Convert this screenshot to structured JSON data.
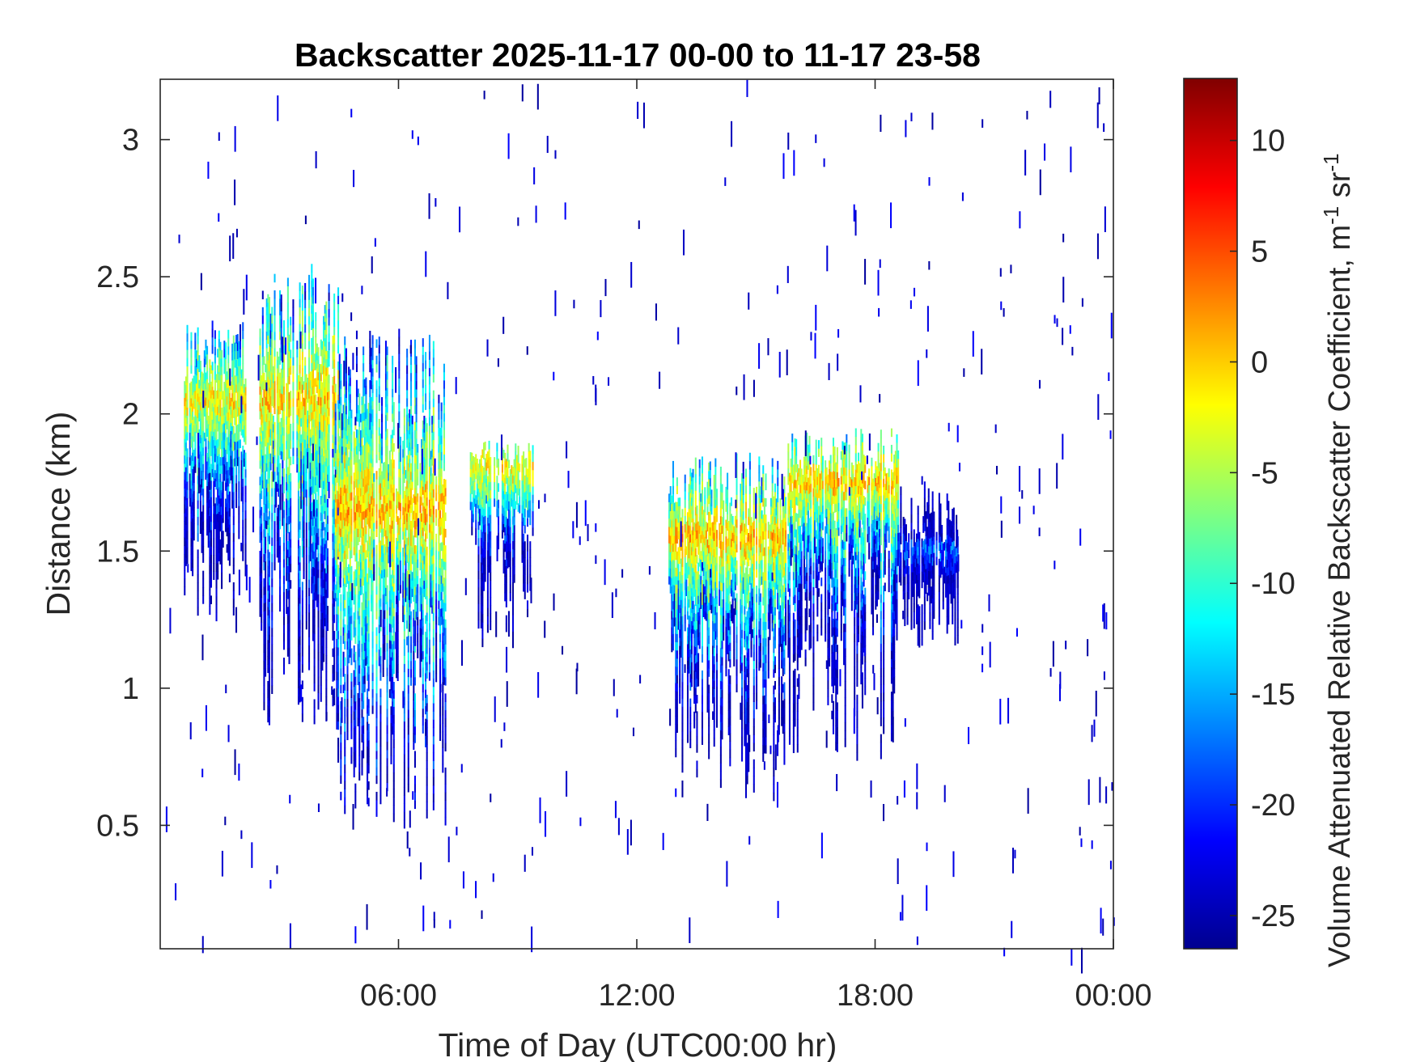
{
  "chart_data": {
    "type": "heatmap",
    "title": "Backscatter 2025-11-17 00-00 to 11-17 23-58",
    "xlabel": "Time of Day (UTC00:00 hr)",
    "ylabel": "Distance (km)",
    "xlim": [
      0,
      24
    ],
    "ylim": [
      0.05,
      3.22
    ],
    "x_ticks": [
      {
        "value": 6,
        "label": "06:00"
      },
      {
        "value": 12,
        "label": "12:00"
      },
      {
        "value": 18,
        "label": "18:00"
      },
      {
        "value": 24,
        "label": "00:00"
      }
    ],
    "y_ticks": [
      {
        "value": 0.5,
        "label": "0.5"
      },
      {
        "value": 1,
        "label": "1"
      },
      {
        "value": 1.5,
        "label": "1.5"
      },
      {
        "value": 2,
        "label": "2"
      },
      {
        "value": 2.5,
        "label": "2.5"
      },
      {
        "value": 3,
        "label": "3"
      }
    ],
    "colorbar": {
      "label_main": "Volume Attenuated Relative Backscatter Coefficient, m",
      "label_exp1": "-1",
      "label_mid": " sr",
      "label_exp2": "-1",
      "range": [
        -26.5,
        12.8
      ],
      "colormap": "jet",
      "ticks": [
        {
          "value": 10,
          "label": "10"
        },
        {
          "value": 5,
          "label": "5"
        },
        {
          "value": 0,
          "label": "0"
        },
        {
          "value": -5,
          "label": "-5"
        },
        {
          "value": -10,
          "label": "-10"
        },
        {
          "value": -15,
          "label": "-15"
        },
        {
          "value": -20,
          "label": "-20"
        },
        {
          "value": -25,
          "label": "-25"
        }
      ]
    },
    "cloud_regions": [
      {
        "x_start": 0.6,
        "x_end": 2.2,
        "base_km": 1.25,
        "top_km": 2.35,
        "peak_km": 2.05,
        "peak_value": 3
      },
      {
        "x_start": 2.5,
        "x_end": 4.5,
        "base_km": 0.85,
        "top_km": 2.55,
        "peak_km": 2.05,
        "peak_value": 4
      },
      {
        "x_start": 4.4,
        "x_end": 7.2,
        "base_km": 0.5,
        "top_km": 2.3,
        "peak_km": 1.65,
        "peak_value": 5
      },
      {
        "x_start": 7.8,
        "x_end": 9.4,
        "base_km": 1.15,
        "top_km": 1.9,
        "peak_km": 1.8,
        "peak_value": 3
      },
      {
        "x_start": 12.8,
        "x_end": 15.8,
        "base_km": 0.6,
        "top_km": 1.85,
        "peak_km": 1.55,
        "peak_value": 5
      },
      {
        "x_start": 15.8,
        "x_end": 18.6,
        "base_km": 0.75,
        "top_km": 1.95,
        "peak_km": 1.75,
        "peak_value": 4
      },
      {
        "x_start": 18.6,
        "x_end": 20.1,
        "base_km": 1.15,
        "top_km": 1.75,
        "peak_km": 1.5,
        "peak_value": -13
      }
    ],
    "grid": false
  }
}
